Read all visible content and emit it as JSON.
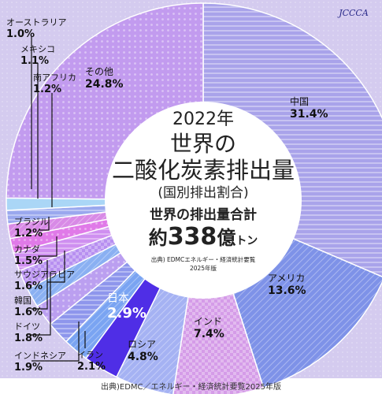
{
  "logo": {
    "text": "JCCCA"
  },
  "center": {
    "year": "2022年",
    "title_line1": "世界の",
    "title_line2": "二酸化炭素排出量",
    "subtitle": "(国別排出割合)",
    "total_label": "世界の排出量合計",
    "total_prefix": "約",
    "total_value": "338",
    "total_unit_big": "億",
    "total_unit_small": "トン",
    "source_line1": "出典) EDMCエネルギー・経済統計要覧",
    "source_line2": "2025年版"
  },
  "footer": {
    "text": "出典)EDMC／エネルギー・経済統計要覧2025年版"
  },
  "chart_data": {
    "type": "pie",
    "title": "2022年 世界の二酸化炭素排出量 (国別排出割合)",
    "unit": "%",
    "start": "12 o'clock, clockwise",
    "categories": [
      "中国",
      "アメリカ",
      "インド",
      "ロシア",
      "日本",
      "イラン",
      "インドネシア",
      "ドイツ",
      "韓国",
      "サウジアラビア",
      "カナダ",
      "ブラジル",
      "南アフリカ",
      "メキシコ",
      "オーストラリア",
      "その他"
    ],
    "values": [
      31.4,
      13.6,
      7.4,
      4.8,
      2.9,
      2.1,
      1.9,
      1.8,
      1.6,
      1.6,
      1.5,
      1.2,
      1.2,
      1.1,
      1.0,
      24.8
    ],
    "labels": [
      {
        "name": "中国",
        "value": "31.4%"
      },
      {
        "name": "アメリカ",
        "value": "13.6%"
      },
      {
        "name": "インド",
        "value": "7.4%"
      },
      {
        "name": "ロシア",
        "value": "4.8%"
      },
      {
        "name": "日本",
        "value": "2.9%"
      },
      {
        "name": "イラン",
        "value": "2.1%"
      },
      {
        "name": "インドネシア",
        "value": "1.9%"
      },
      {
        "name": "ドイツ",
        "value": "1.8%"
      },
      {
        "name": "韓国",
        "value": "1.6%"
      },
      {
        "name": "サウジアラビア",
        "value": "1.6%"
      },
      {
        "name": "カナダ",
        "value": "1.5%"
      },
      {
        "name": "ブラジル",
        "value": "1.2%"
      },
      {
        "name": "南アフリカ",
        "value": "1.2%"
      },
      {
        "name": "メキシコ",
        "value": "1.1%"
      },
      {
        "name": "オーストラリア",
        "value": "1.0%"
      },
      {
        "name": "その他",
        "value": "24.8%"
      }
    ],
    "colors": [
      "#a9a3ea",
      "#7e92e8",
      "#d59ce8",
      "#a5b2f3",
      "#4f2ee6",
      "#7aa4f2",
      "#8e96ec",
      "#bb9ff0",
      "#8ab0f2",
      "#b78ff0",
      "#cf8ff0",
      "#e07ae8",
      "#d88ae6",
      "#9aa8ee",
      "#aad6f6",
      "#c29bef"
    ]
  }
}
